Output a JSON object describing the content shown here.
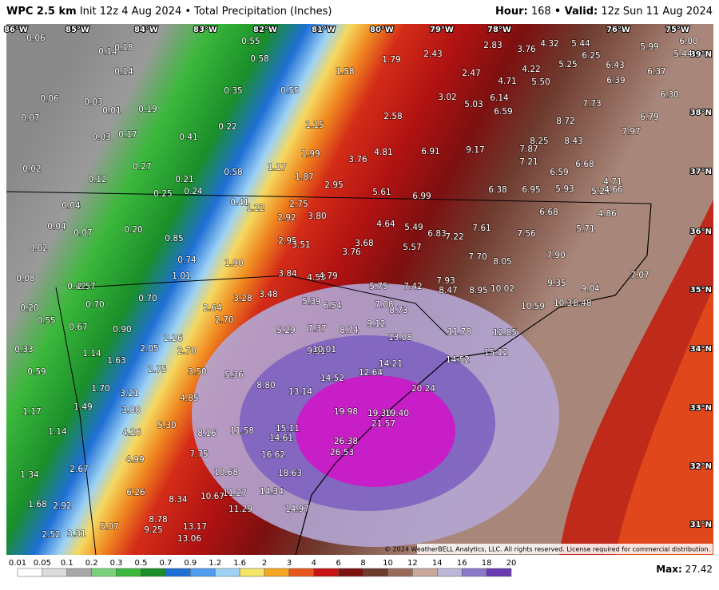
{
  "header": {
    "model": "WPC 2.5 km",
    "info": "Init 12z 4 Aug 2024 • Total Precipitation (Inches)",
    "hour_label": "Hour:",
    "hour": "168",
    "valid_label": "• Valid:",
    "valid": "12z Sun 11 Aug 2024"
  },
  "longitudes": [
    "86°W",
    "85°W",
    "84°W",
    "83°W",
    "82°W",
    "81°W",
    "80°W",
    "79°W",
    "78°W",
    "76°W",
    "75°W"
  ],
  "latitudes": [
    "39°N",
    "38°N",
    "37°N",
    "36°N",
    "35°N",
    "34°N",
    "33°N",
    "32°N",
    "31°N"
  ],
  "map_labels": [
    "0.06",
    "0.14",
    "0.18",
    "0.14",
    "0.06",
    "0.03",
    "0.01",
    "0.19",
    "0.07",
    "0.03",
    "0.17",
    "0.41",
    "0.22",
    "0.55",
    "0.58",
    "0.35",
    "0.55",
    "1.58",
    "1.79",
    "2.43",
    "2.83",
    "3.76",
    "4.32",
    "5.44",
    "6.25",
    "5.25",
    "4.22",
    "2.47",
    "4.71",
    "5.50",
    "6.43",
    "6.39",
    "5.99",
    "6.00",
    "5.44",
    "6.37",
    "6.30",
    "3.02",
    "5.03",
    "6.14",
    "6.59",
    "7.73",
    "8.72",
    "6.79",
    "7.97",
    "1.15",
    "2.58",
    "0.02",
    "0.12",
    "0.27",
    "0.21",
    "0.58",
    "0.25",
    "0.24",
    "1.17",
    "1.99",
    "1.87",
    "3.76",
    "4.81",
    "6.91",
    "9.17",
    "8.25",
    "7.87",
    "8.43",
    "7.21",
    "6.68",
    "6.59",
    "4.71",
    "5.24",
    "4.66",
    "2.95",
    "5.61",
    "6.99",
    "6.38",
    "6.95",
    "5.93",
    "0.04",
    "0.04",
    "0.07",
    "0.20",
    "0.41",
    "1.22",
    "2.75",
    "2.92",
    "3.80",
    "4.64",
    "5.49",
    "6.83",
    "7.22",
    "7.61",
    "6.68",
    "4.86",
    "7.56",
    "5.71",
    "0.02",
    "0.85",
    "2.95",
    "3.51",
    "3.68",
    "3.76",
    "5.57",
    "7.70",
    "8.05",
    "7.90",
    "0.74",
    "1.90",
    "0.08",
    "1.01",
    "3.84",
    "4.53",
    "4.79",
    "5.75",
    "7.42",
    "7.93",
    "8.47",
    "8.95",
    "10.02",
    "9.35",
    "9.04",
    "7.07",
    "0.42",
    "2.57",
    "0.70",
    "0.70",
    "3.28",
    "3.48",
    "5.39",
    "6.54",
    "7.08",
    "8.73",
    "10.59",
    "10.31",
    "8.48",
    "0.20",
    "2.64",
    "0.55",
    "0.67",
    "0.90",
    "2.70",
    "9.12",
    "7.37",
    "5.29",
    "8.74",
    "2.26",
    "11.78",
    "12.85",
    "13.08",
    "0.33",
    "1.14",
    "2.05",
    "2.70",
    "9.91",
    "10.01",
    "15.12",
    "0.59",
    "1.63",
    "2.75",
    "3.50",
    "5.36",
    "14.21",
    "12.64",
    "14.52",
    "14.52",
    "8.80",
    "1.70",
    "3.21",
    "4.85",
    "13.14",
    "20.24",
    "1.49",
    "3.88",
    "1.17",
    "19.98",
    "19.30",
    "19.40",
    "5.30",
    "21.57",
    "1.14",
    "4.26",
    "8.16",
    "11.58",
    "15.11",
    "14.61",
    "26.38",
    "26.53",
    "16.62",
    "7.75",
    "4.99",
    "2.67",
    "1.34",
    "10.68",
    "18.63",
    "6.26",
    "8.34",
    "10.67",
    "11.27",
    "14.34",
    "1.68",
    "2.92",
    "11.29",
    "14.97",
    "8.78",
    "5.07",
    "9.25",
    "13.17",
    "13.06",
    "2.52",
    "3.31"
  ],
  "copyright": "© 2024 WeatherBELL Analytics, LLC. All rights reserved. License required for commercial distribution.",
  "legend": {
    "levels": [
      "0.01",
      "0.05",
      "0.1",
      "0.2",
      "0.3",
      "0.5",
      "0.7",
      "0.9",
      "1.2",
      "1.6",
      "2",
      "3",
      "4",
      "6",
      "8",
      "10",
      "12",
      "14",
      "16",
      "18",
      "20"
    ],
    "colors": [
      "#ffffff",
      "#dcdcdc",
      "#a8a8a8",
      "#7ad17a",
      "#3cb83c",
      "#1a8f2a",
      "#1f6fd6",
      "#4f9cf0",
      "#9dd2f5",
      "#f5e36a",
      "#f5a623",
      "#e8561c",
      "#c81414",
      "#7d1010",
      "#6e3a2e",
      "#9a6a5a",
      "#c9a89c",
      "#bdb6d8",
      "#8a7ac8",
      "#6a3ab0",
      "#c81ec8"
    ]
  },
  "max_label": "Max:",
  "max": "27.42"
}
